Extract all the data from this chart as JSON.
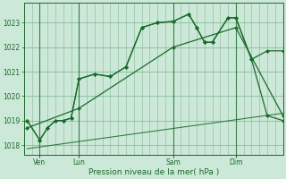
{
  "background_color": "#cce8d8",
  "grid_color": "#88bb99",
  "line_color": "#1a6b2a",
  "xlabel": "Pression niveau de la mer( hPa )",
  "ylim": [
    1017.6,
    1023.8
  ],
  "yticks": [
    1018,
    1019,
    1020,
    1021,
    1022,
    1023
  ],
  "xlim": [
    0,
    16.5
  ],
  "xtick_labels": [
    "Ven",
    "Lun",
    "Sam",
    "Dim"
  ],
  "xtick_positions": [
    1.0,
    3.5,
    9.5,
    13.5
  ],
  "vline_positions": [
    1.0,
    3.5,
    9.5,
    13.5
  ],
  "series1_x": [
    0.2,
    1.0,
    1.5,
    2.0,
    2.5,
    3.0,
    3.5,
    4.5,
    5.5,
    6.5,
    7.5,
    8.5,
    9.5,
    10.5,
    11.0,
    11.5,
    12.0,
    13.0,
    13.5,
    14.5,
    15.5,
    16.5
  ],
  "series1_y": [
    1019.0,
    1018.2,
    1018.7,
    1019.0,
    1019.0,
    1019.1,
    1020.7,
    1020.9,
    1020.8,
    1021.2,
    1022.8,
    1023.0,
    1023.05,
    1023.35,
    1022.8,
    1022.2,
    1022.2,
    1023.2,
    1023.2,
    1021.5,
    1021.85,
    1021.85
  ],
  "series2_x": [
    0.2,
    1.0,
    1.5,
    2.0,
    2.5,
    3.0,
    3.5,
    4.5,
    5.5,
    6.5,
    7.5,
    8.5,
    9.5,
    10.5,
    11.0,
    11.5,
    12.0,
    13.0,
    13.5,
    14.5,
    15.5,
    16.5
  ],
  "series2_y": [
    1019.0,
    1018.2,
    1018.7,
    1019.0,
    1019.0,
    1019.1,
    1020.7,
    1020.9,
    1020.8,
    1021.2,
    1022.8,
    1023.0,
    1023.05,
    1023.35,
    1022.8,
    1022.2,
    1022.2,
    1023.2,
    1023.2,
    1021.5,
    1019.2,
    1019.0
  ],
  "series3_x": [
    0.2,
    3.5,
    9.5,
    13.5,
    16.5
  ],
  "series3_y": [
    1018.7,
    1019.5,
    1022.0,
    1022.8,
    1019.2
  ],
  "series4_x": [
    0.2,
    16.5
  ],
  "series4_y": [
    1017.85,
    1019.3
  ],
  "n_vgrid": 34,
  "marker_size": 2.5,
  "linewidth": 0.9
}
